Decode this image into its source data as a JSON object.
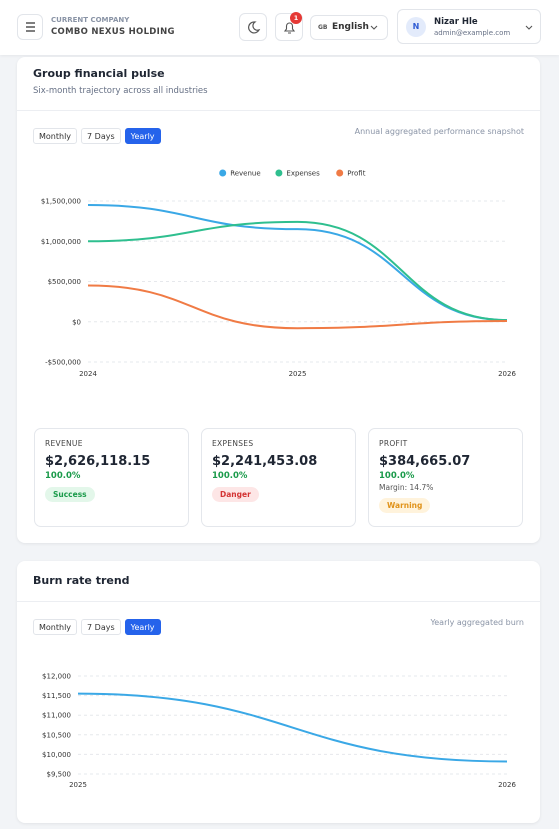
{
  "header": {
    "company_label": "CURRENT COMPANY",
    "company_name": "COMBO NEXUS HOLDING",
    "notification_count": 1,
    "language_code": "GB",
    "language": "English",
    "user": {
      "initial": "N",
      "name": "Nizar Hle",
      "email": "admin@example.com"
    }
  },
  "panels": [
    {
      "title": "Group financial pulse",
      "subtitle": "Six-month trajectory across all industries",
      "tabs": [
        "Monthly",
        "7 Days",
        "Yearly"
      ],
      "active_tab": 2,
      "note": "Annual aggregated performance snapshot",
      "chart_data": {
        "type": "line",
        "x": [
          2024,
          2025,
          2026
        ],
        "xlim": [
          2024,
          2026
        ],
        "series": [
          {
            "name": "Revenue",
            "color": "#3aa8e6",
            "values": [
              1450000,
              1150000,
              20000
            ]
          },
          {
            "name": "Expenses",
            "color": "#2fbf8f",
            "values": [
              1000000,
              1240000,
              20000
            ]
          },
          {
            "name": "Profit",
            "color": "#f07b45",
            "values": [
              450000,
              -80000,
              10000
            ]
          }
        ],
        "ylim": [
          -500000,
          1500000
        ],
        "yticks": [
          {
            "value": -500000,
            "label": "-$500,000"
          },
          {
            "value": 0,
            "label": "$0"
          },
          {
            "value": 500000,
            "label": "$500,000"
          },
          {
            "value": 1000000,
            "label": "$1,000,000"
          },
          {
            "value": 1500000,
            "label": "$1,500,000"
          }
        ],
        "grid": true,
        "legend": "top"
      },
      "stats": [
        {
          "label": "REVENUE",
          "value": "$2,626,118.15",
          "change": "100.0%",
          "badge": "Success"
        },
        {
          "label": "EXPENSES",
          "value": "$2,241,453.08",
          "change": "100.0%",
          "badge": "Danger"
        },
        {
          "label": "PROFIT",
          "value": "$384,665.07",
          "change": "100.0%",
          "extra": "Margin: 14.7%",
          "badge": "Warning"
        }
      ]
    },
    {
      "title": "Burn rate trend",
      "tabs": [
        "Monthly",
        "7 Days",
        "Yearly"
      ],
      "active_tab": 2,
      "note": "Yearly aggregated burn",
      "chart_data": {
        "type": "line",
        "x": [
          2025,
          2026
        ],
        "xlim": [
          2025,
          2026
        ],
        "series": [
          {
            "color": "#3aa8e6",
            "values": [
              11550,
              9820
            ]
          }
        ],
        "ylim": [
          9500,
          12000
        ],
        "yticks": [
          {
            "value": 9500,
            "label": "$9,500"
          },
          {
            "value": 10000,
            "label": "$10,000"
          },
          {
            "value": 10500,
            "label": "$10,500"
          },
          {
            "value": 11000,
            "label": "$11,000"
          },
          {
            "value": 11500,
            "label": "$11,500"
          },
          {
            "value": 12000,
            "label": "$12,000"
          }
        ],
        "grid": true
      }
    }
  ]
}
